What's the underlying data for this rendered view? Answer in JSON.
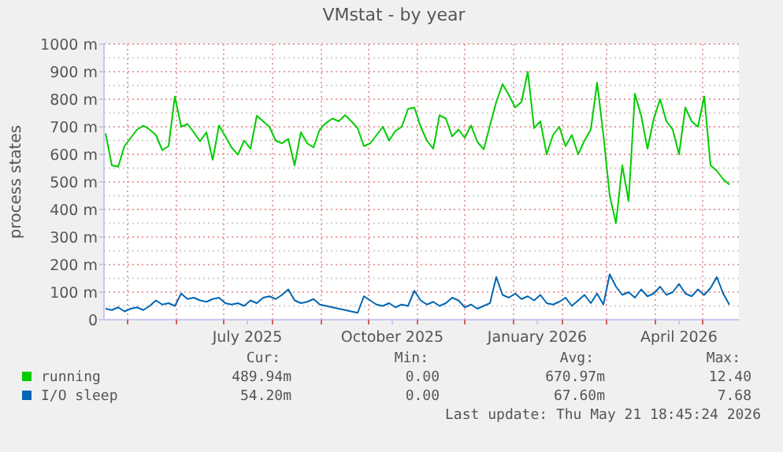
{
  "chart_data": {
    "type": "line",
    "title": "VMstat - by year",
    "ylabel": "process states",
    "x": [
      "2025-04-17",
      "2025-04-21",
      "2025-04-25",
      "2025-04-29",
      "2025-05-03",
      "2025-05-07",
      "2025-05-11",
      "2025-05-15",
      "2025-05-19",
      "2025-05-23",
      "2025-05-27",
      "2025-05-31",
      "2025-06-04",
      "2025-06-08",
      "2025-06-12",
      "2025-06-16",
      "2025-06-20",
      "2025-06-24",
      "2025-06-28",
      "2025-07-02",
      "2025-07-06",
      "2025-07-10",
      "2025-07-14",
      "2025-07-18",
      "2025-07-22",
      "2025-07-26",
      "2025-07-30",
      "2025-08-03",
      "2025-08-07",
      "2025-08-11",
      "2025-08-15",
      "2025-08-19",
      "2025-08-23",
      "2025-08-27",
      "2025-08-31",
      "2025-09-04",
      "2025-09-08",
      "2025-09-12",
      "2025-09-16",
      "2025-09-20",
      "2025-09-24",
      "2025-09-28",
      "2025-10-02",
      "2025-10-06",
      "2025-10-10",
      "2025-10-14",
      "2025-10-18",
      "2025-10-22",
      "2025-10-26",
      "2025-10-30",
      "2025-11-03",
      "2025-11-07",
      "2025-11-11",
      "2025-11-15",
      "2025-11-19",
      "2025-11-23",
      "2025-11-27",
      "2025-12-01",
      "2025-12-05",
      "2025-12-09",
      "2025-12-13",
      "2025-12-17",
      "2025-12-21",
      "2025-12-25",
      "2025-12-29",
      "2026-01-02",
      "2026-01-06",
      "2026-01-10",
      "2026-01-14",
      "2026-01-18",
      "2026-01-22",
      "2026-01-26",
      "2026-01-30",
      "2026-02-03",
      "2026-02-07",
      "2026-02-11",
      "2026-02-15",
      "2026-02-19",
      "2026-02-23",
      "2026-02-27",
      "2026-03-03",
      "2026-03-07",
      "2026-03-11",
      "2026-03-15",
      "2026-03-19",
      "2026-03-23",
      "2026-03-27",
      "2026-03-31",
      "2026-04-04",
      "2026-04-08",
      "2026-04-12",
      "2026-04-16",
      "2026-04-20",
      "2026-04-24",
      "2026-04-28",
      "2026-05-02",
      "2026-05-06",
      "2026-05-10",
      "2026-05-14",
      "2026-05-18"
    ],
    "series": [
      {
        "name": "running",
        "color": "#00cc00",
        "values": [
          676,
          560,
          555,
          630,
          660,
          690,
          704,
          690,
          670,
          615,
          630,
          810,
          700,
          710,
          680,
          647,
          680,
          580,
          705,
          666,
          625,
          599,
          650,
          620,
          740,
          720,
          700,
          650,
          640,
          656,
          560,
          680,
          640,
          625,
          690,
          714,
          730,
          720,
          742,
          720,
          695,
          630,
          640,
          670,
          700,
          650,
          685,
          700,
          765,
          770,
          700,
          650,
          620,
          742,
          730,
          665,
          690,
          660,
          705,
          645,
          618,
          705,
          790,
          855,
          815,
          770,
          790,
          900,
          695,
          720,
          600,
          670,
          700,
          630,
          670,
          600,
          650,
          690,
          860,
          670,
          450,
          350,
          560,
          430,
          820,
          740,
          620,
          730,
          800,
          720,
          690,
          600,
          770,
          720,
          700,
          810,
          560,
          540,
          510,
          490
        ]
      },
      {
        "name": "I/O sleep",
        "color": "#0066b3",
        "values": [
          40,
          35,
          45,
          30,
          40,
          45,
          35,
          50,
          70,
          55,
          60,
          50,
          95,
          75,
          80,
          70,
          65,
          75,
          80,
          60,
          55,
          60,
          50,
          70,
          60,
          80,
          85,
          75,
          90,
          110,
          70,
          60,
          65,
          75,
          55,
          50,
          45,
          40,
          35,
          30,
          25,
          85,
          70,
          55,
          50,
          60,
          45,
          55,
          50,
          105,
          70,
          55,
          65,
          50,
          60,
          80,
          70,
          45,
          55,
          40,
          50,
          60,
          155,
          90,
          80,
          95,
          75,
          85,
          70,
          90,
          60,
          55,
          65,
          80,
          50,
          70,
          90,
          60,
          95,
          55,
          165,
          120,
          90,
          100,
          80,
          110,
          85,
          95,
          120,
          90,
          100,
          130,
          95,
          85,
          110,
          90,
          115,
          155,
          95,
          54
        ]
      }
    ],
    "xlim": [
      "2025-04-16",
      "2026-05-24"
    ],
    "xticks": [
      {
        "value": "2025-05-01",
        "label": null
      },
      {
        "value": "2025-06-01",
        "label": null
      },
      {
        "value": "2025-07-01",
        "label": null
      },
      {
        "value": "2025-07-16",
        "label": "July 2025"
      },
      {
        "value": "2025-08-01",
        "label": null
      },
      {
        "value": "2025-09-01",
        "label": null
      },
      {
        "value": "2025-10-01",
        "label": null
      },
      {
        "value": "2025-10-16",
        "label": "October 2025"
      },
      {
        "value": "2025-11-01",
        "label": null
      },
      {
        "value": "2025-12-01",
        "label": null
      },
      {
        "value": "2026-01-01",
        "label": null
      },
      {
        "value": "2026-01-16",
        "label": "January 2026"
      },
      {
        "value": "2026-02-01",
        "label": null
      },
      {
        "value": "2026-03-01",
        "label": null
      },
      {
        "value": "2026-04-01",
        "label": null
      },
      {
        "value": "2026-04-16",
        "label": "April 2026"
      },
      {
        "value": "2026-05-01",
        "label": null
      }
    ],
    "ylim": [
      0,
      1000
    ],
    "yticks": [
      0,
      {
        "value": 100,
        "label": "100 m"
      },
      {
        "value": 200,
        "label": "200 m"
      },
      {
        "value": 300,
        "label": "300 m"
      },
      {
        "value": 400,
        "label": "400 m"
      },
      {
        "value": 500,
        "label": "500 m"
      },
      {
        "value": 600,
        "label": "600 m"
      },
      {
        "value": 700,
        "label": "700 m"
      },
      {
        "value": 800,
        "label": "800 m"
      },
      {
        "value": 900,
        "label": "900 m"
      },
      {
        "value": 1000,
        "label": "1000 m"
      }
    ],
    "grid": true,
    "legend": "bottom left",
    "line_style": "solid",
    "marker": "none",
    "annotations": [
      "Cur:",
      "Min:",
      "Avg:",
      "Max:",
      "489.94m",
      "0.00",
      "670.97m",
      "12.40",
      "54.20m",
      "0.00",
      "67.60m",
      "7.68",
      "Last update: Thu May 21 18:45:24 2026"
    ]
  }
}
